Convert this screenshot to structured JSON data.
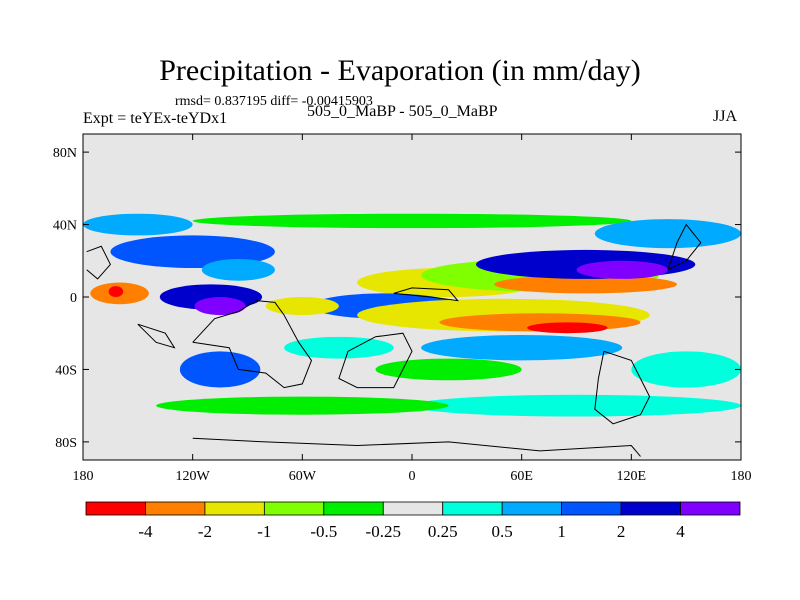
{
  "chart_data": {
    "type": "heatmap",
    "title": "Precipitation - Evaporation (in mm/day)",
    "stats": "rmsd= 0.837195 diff= -0.00415903",
    "left_label": "Expt = teYEx-teYDx1",
    "center_label": "505_0_MaBP - 505_0_MaBP",
    "season": "JJA",
    "x_ticks": [
      "180",
      "120W",
      "60W",
      "0",
      "60E",
      "120E",
      "180"
    ],
    "y_ticks": [
      "80N",
      "40N",
      "0",
      "40S",
      "80S"
    ],
    "xlim": [
      -180,
      180
    ],
    "ylim": [
      -90,
      90
    ],
    "colorbar": {
      "levels": [
        "-4",
        "-2",
        "-1",
        "-0.5",
        "-0.25",
        "0.25",
        "0.5",
        "1",
        "2",
        "4"
      ],
      "colors": [
        "#ff0000",
        "#ff8000",
        "#e6e600",
        "#80ff00",
        "#00ee00",
        "#e6e6e6",
        "#00ffdd",
        "#00aaff",
        "#0055ff",
        "#0000cc",
        "#8000ff"
      ]
    },
    "field_blobs": [
      {
        "lon": -160,
        "lat": 2,
        "rx": 16,
        "ry": 6,
        "level": 1
      },
      {
        "lon": -162,
        "lat": 3,
        "rx": 4,
        "ry": 3,
        "level": 0
      },
      {
        "lon": -110,
        "lat": 0,
        "rx": 28,
        "ry": 7,
        "level": 9
      },
      {
        "lon": -105,
        "lat": -5,
        "rx": 14,
        "ry": 5,
        "level": 10
      },
      {
        "lon": -120,
        "lat": 25,
        "rx": 45,
        "ry": 9,
        "level": 8
      },
      {
        "lon": -95,
        "lat": 15,
        "rx": 20,
        "ry": 6,
        "level": 7
      },
      {
        "lon": 20,
        "lat": 8,
        "rx": 50,
        "ry": 8,
        "level": 2
      },
      {
        "lon": 70,
        "lat": 12,
        "rx": 65,
        "ry": 9,
        "level": 3
      },
      {
        "lon": 95,
        "lat": 7,
        "rx": 50,
        "ry": 5,
        "level": 1
      },
      {
        "lon": 95,
        "lat": 18,
        "rx": 60,
        "ry": 8,
        "level": 9
      },
      {
        "lon": 115,
        "lat": 15,
        "rx": 25,
        "ry": 5,
        "level": 10
      },
      {
        "lon": -15,
        "lat": -5,
        "rx": 40,
        "ry": 7,
        "level": 8
      },
      {
        "lon": 50,
        "lat": -10,
        "rx": 80,
        "ry": 9,
        "level": 2
      },
      {
        "lon": 70,
        "lat": -14,
        "rx": 55,
        "ry": 5,
        "level": 1
      },
      {
        "lon": 85,
        "lat": -17,
        "rx": 22,
        "ry": 3,
        "level": 0
      },
      {
        "lon": -60,
        "lat": -5,
        "rx": 20,
        "ry": 5,
        "level": 2
      },
      {
        "lon": 60,
        "lat": -28,
        "rx": 55,
        "ry": 7,
        "level": 7
      },
      {
        "lon": -40,
        "lat": -28,
        "rx": 30,
        "ry": 6,
        "level": 6
      },
      {
        "lon": -105,
        "lat": -40,
        "rx": 22,
        "ry": 10,
        "level": 8
      },
      {
        "lon": 20,
        "lat": -40,
        "rx": 40,
        "ry": 6,
        "level": 4
      },
      {
        "lon": 150,
        "lat": -40,
        "rx": 30,
        "ry": 10,
        "level": 6
      },
      {
        "lon": 90,
        "lat": -60,
        "rx": 90,
        "ry": 6,
        "level": 6
      },
      {
        "lon": -60,
        "lat": -60,
        "rx": 80,
        "ry": 5,
        "level": 4
      },
      {
        "lon": 0,
        "lat": 42,
        "rx": 120,
        "ry": 4,
        "level": 4
      },
      {
        "lon": -150,
        "lat": 40,
        "rx": 30,
        "ry": 6,
        "level": 7
      },
      {
        "lon": 140,
        "lat": 35,
        "rx": 40,
        "ry": 8,
        "level": 7
      }
    ]
  }
}
